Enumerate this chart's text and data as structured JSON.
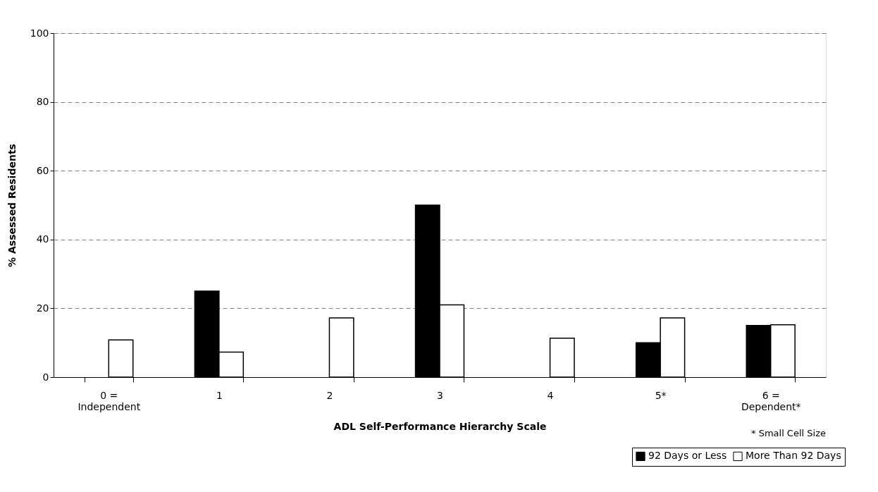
{
  "chart_data": {
    "type": "bar",
    "xlabel": "ADL Self-Performance Hierarchy Scale",
    "ylabel": "% Assessed Residents",
    "categories": [
      "0 =\nIndependent",
      "1",
      "2",
      "3",
      "4",
      "5*",
      "6 =\nDependent*"
    ],
    "series": [
      {
        "name": "92 Days or Less",
        "color": "#000000",
        "values": [
          null,
          25,
          null,
          50,
          null,
          10,
          15
        ]
      },
      {
        "name": "More Than 92 Days",
        "color": "#ffffff",
        "values": [
          10.8,
          7.3,
          17.2,
          21,
          11.3,
          17.2,
          15.2
        ]
      }
    ],
    "ylim": [
      0,
      100
    ],
    "yticks": [
      0,
      20,
      40,
      60,
      80,
      100
    ],
    "grid": "y",
    "legend": "bottom right",
    "annotations": [
      "* Small Cell Size"
    ]
  }
}
